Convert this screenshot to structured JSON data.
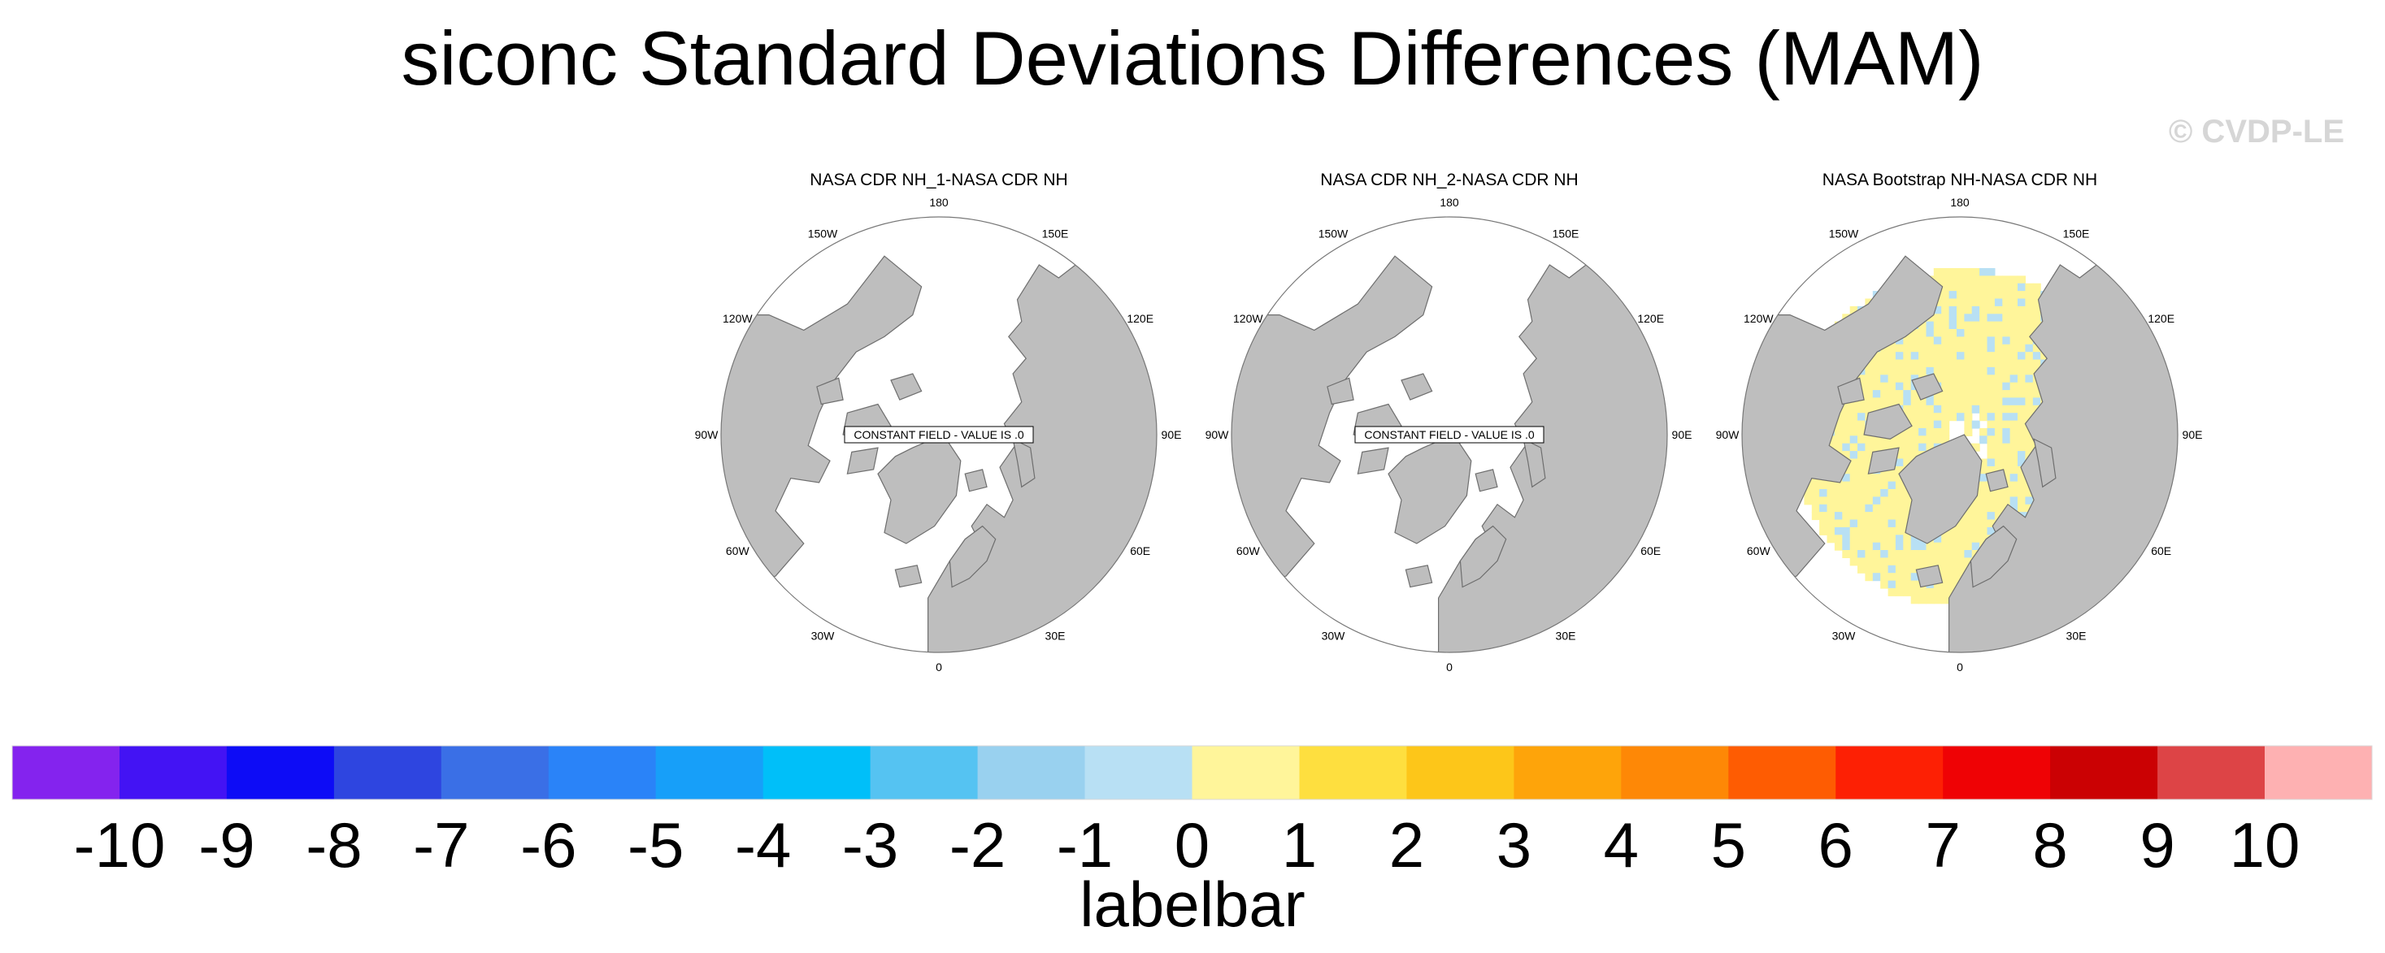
{
  "title": "siconc Standard Deviations Differences (MAM)",
  "watermark": "© CVDP-LE",
  "panels": [
    {
      "title": "NASA CDR NH_1-NASA CDR NH",
      "constant_field_label": "CONSTANT FIELD - VALUE IS .0",
      "has_data": false
    },
    {
      "title": "NASA CDR NH_2-NASA CDR NH",
      "constant_field_label": "CONSTANT FIELD - VALUE IS .0",
      "has_data": false
    },
    {
      "title": "NASA Bootstrap NH-NASA CDR NH",
      "constant_field_label": "",
      "has_data": true
    }
  ],
  "longitude_labels": {
    "top": "180",
    "bottom": "0",
    "top_left": "150W",
    "top_right": "150E",
    "upper_left": "120W",
    "upper_right": "120E",
    "left": "90W",
    "right": "90E",
    "lower_left": "60W",
    "lower_right": "60E",
    "bottom_left": "30W",
    "bottom_right": "30E"
  },
  "colors": {
    "land": "#bebebe",
    "coast": "#6e6e6e",
    "ocean": "#ffffff",
    "positive_small": "#fff59a",
    "negative_small": "#b8e0f4"
  },
  "chart_data": {
    "type": "heatmap",
    "projection": "north polar stereographic",
    "fields": [
      {
        "panel": "NASA CDR NH_1-NASA CDR NH",
        "value": 0
      },
      {
        "panel": "NASA CDR NH_2-NASA CDR NH",
        "value": 0
      },
      {
        "panel": "NASA Bootstrap NH-NASA CDR NH",
        "range_shown": [
          -1,
          1
        ],
        "dominant_bin": "0 to 1",
        "secondary_bin": "-1 to 0"
      }
    ],
    "colorbar": {
      "title": "labelbar",
      "tick_labels": [
        "-10",
        "-9",
        "-8",
        "-7",
        "-6",
        "-5",
        "-4",
        "-3",
        "-2",
        "-1",
        "0",
        "1",
        "2",
        "3",
        "4",
        "5",
        "6",
        "7",
        "8",
        "9",
        "10"
      ],
      "colors": [
        "#8423ee",
        "#4313f4",
        "#0d0cf6",
        "#2e45e0",
        "#3a6fe6",
        "#2a83f8",
        "#179ff9",
        "#00bff9",
        "#55c3f2",
        "#99d1ef",
        "#b8e0f4",
        "#fff59a",
        "#fedf3f",
        "#fdc619",
        "#fea40a",
        "#fe8806",
        "#fe5c02",
        "#fd2004",
        "#ef0205",
        "#cb0103",
        "#dd4446",
        "#feb1b2"
      ],
      "orientation": "horizontal",
      "endpoints": "triangles"
    }
  }
}
